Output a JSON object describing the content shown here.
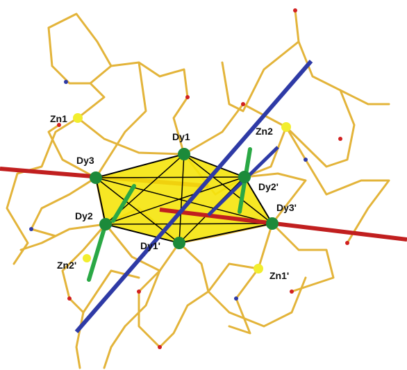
{
  "labels": [
    "Zn1",
    "Dy1",
    "Zn2",
    "Dy3",
    "Dy2'",
    "Dy2",
    "Dy3'",
    "Dy1'",
    "Zn2'",
    "Zn1'"
  ]
}
